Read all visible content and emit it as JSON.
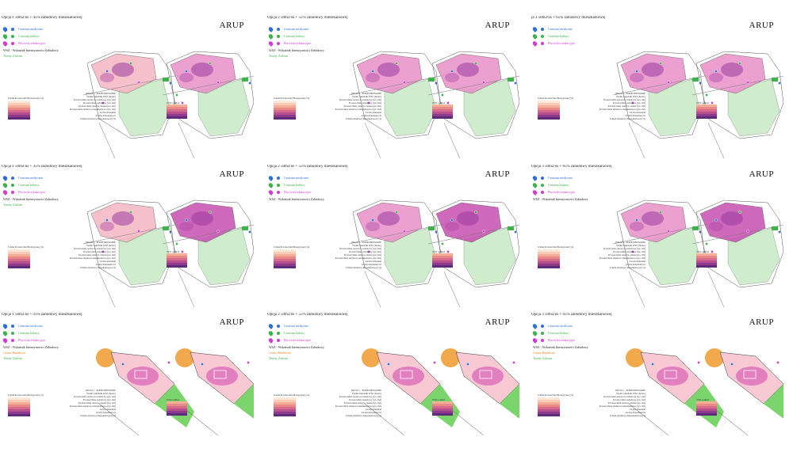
{
  "brand": "ARUP",
  "legend_items": [
    {
      "label": "Centrum medyczne",
      "color": "#2f6fd6"
    },
    {
      "label": "Centrum kultury",
      "color": "#3cb44b"
    },
    {
      "label": "Placówki edukacyjne",
      "color": "#d23cd2"
    }
  ],
  "wsz_label": "WSZ - Wskaźnik Intensywności Zabudowy",
  "tereny_zielone": "Tereny Zielone",
  "centra_handlowe": "Centra Handlowe",
  "scale_title": "Udział Powierzchni Biologicznej (%)",
  "wsz_box_label": "WSZ rozkład",
  "param_header": "OPCJA 1 - PODSUMOWANIE",
  "params": [
    "Średni wskaźnik WSZ (brutto)",
    "Powierzchnia terenu do zabudowy (tys. m2)",
    "Powierzchnia zabudowy (tys. m2)",
    "Powierzchnia terenów zieleni (tys. m2)",
    "Powierzchnia użytkowa mieszkaniowa (tys. m2)",
    "Liczba mieszkań",
    "Liczba mieszkańców",
    "Udział zabudowy mieszkaniowej (%)"
  ],
  "scale_colors": [
    "#fde9d9",
    "#f9cdb5",
    "#f4ad97",
    "#ea8a87",
    "#d46a8c",
    "#b84f8f",
    "#8e3a8c",
    "#5e2a7a"
  ],
  "panels": [
    {
      "title": "Opcja 1 50m2/os + 45% zabudowy mieszkaniowej"
    },
    {
      "title": "Opcja 2 50m2/os + 55% zabudowy mieszkaniowej"
    },
    {
      "title": "ja 3 50m2/os + 65% zabudowy mieszkaniowej"
    },
    {
      "title": "Opcja 1 50m2/os + 35% zabudowy mieszkaniowej"
    },
    {
      "title": "Opcja 2 50m2/os + 55% zabudowy mieszkaniowej"
    },
    {
      "title": "Opcja 3 50m2/os + 65% zabudowy mieszkaniowej"
    },
    {
      "title": "Opcja 1 50m2/os + 35% zabudowy mieszkaniowej"
    },
    {
      "title": "Opcja 2 50m2/os + 55% zabudowy mieszkaniowej"
    },
    {
      "title": "Opcja 3 50m2/os + 65% zabudowy mieszkaniowej"
    }
  ]
}
